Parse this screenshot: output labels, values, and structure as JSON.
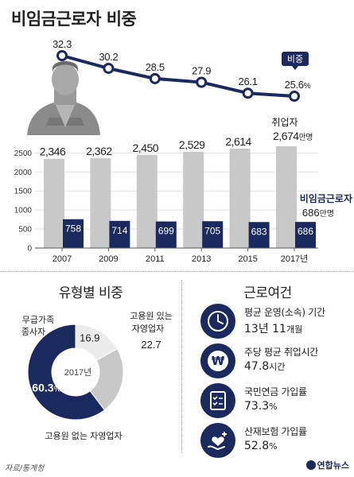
{
  "title": "비임금근로자 비중",
  "chart_data": [
    {
      "type": "bar+line",
      "categories": [
        "2007",
        "2009",
        "2011",
        "2013",
        "2015",
        "2017년"
      ],
      "series": [
        {
          "name": "취업자",
          "type": "bar",
          "unit": "만명",
          "values": [
            2346,
            2362,
            2450,
            2529,
            2614,
            2674
          ],
          "color": "#c8c8c8"
        },
        {
          "name": "비임금근로자",
          "type": "bar",
          "unit": "만명",
          "values": [
            758,
            714,
            699,
            705,
            683,
            686
          ],
          "color": "#1b2a5e"
        },
        {
          "name": "비중",
          "type": "line",
          "unit": "%",
          "values": [
            32.3,
            30.2,
            28.5,
            27.9,
            26.1,
            25.6
          ],
          "color": "#1b2a5e"
        }
      ],
      "value_labels": {
        "employed": [
          "2,346",
          "2,362",
          "2,450",
          "2,529",
          "2,614",
          "2,674"
        ],
        "nonwage": [
          "758",
          "714",
          "699",
          "705",
          "683",
          "686"
        ],
        "ratio": [
          "32.3",
          "30.2",
          "28.5",
          "27.9",
          "26.1",
          "25.6"
        ]
      },
      "yticks": [
        0,
        500,
        1000,
        1500,
        2000,
        2500
      ],
      "ytick_labels": [
        "0",
        "500",
        "1000",
        "1500",
        "2000",
        "2500"
      ],
      "ylim": [
        0,
        2800
      ],
      "ratio_unit": "%",
      "unit_manmyeong": "만명",
      "legend": {
        "ratio": "비중",
        "employed": "취업자",
        "nonwage": "비임금근로자"
      },
      "grid": true
    },
    {
      "type": "pie",
      "title": "유형별 비중",
      "center_label": "2017년",
      "categories": [
        "무급가족 종사자",
        "고용원 있는 자영업자",
        "고용원 없는 자영업자"
      ],
      "values": [
        16.9,
        22.7,
        60.3
      ],
      "value_labels": [
        "16.9",
        "22.7",
        "60.3"
      ],
      "unit": "%",
      "colors": [
        "#ececec",
        "#c8c8c8",
        "#1b2a5e"
      ]
    }
  ],
  "pie_labels": {
    "unpaid_line1": "무급가족",
    "unpaid_line2": "종사자",
    "with_emp_line1": "고용원 있는",
    "with_emp_line2": "자영업자",
    "without_emp": "고용원 없는 자영업자"
  },
  "conditions": {
    "title": "근로여건",
    "items": [
      {
        "label": "평균 운영(소속) 기간",
        "value": "13년 11",
        "unit": "개월",
        "icon": "clock-icon"
      },
      {
        "label": "주당 평균 취업시간",
        "value": "47.8",
        "unit": "시간",
        "icon": "won-icon"
      },
      {
        "label": "국민연금 가입률",
        "value": "73.3",
        "unit": "%",
        "icon": "checklist-icon"
      },
      {
        "label": "산재보험 가입률",
        "value": "52.8",
        "unit": "%",
        "icon": "hand-heart-icon"
      }
    ]
  },
  "source": "자료/통계청",
  "logo": "연합뉴스"
}
